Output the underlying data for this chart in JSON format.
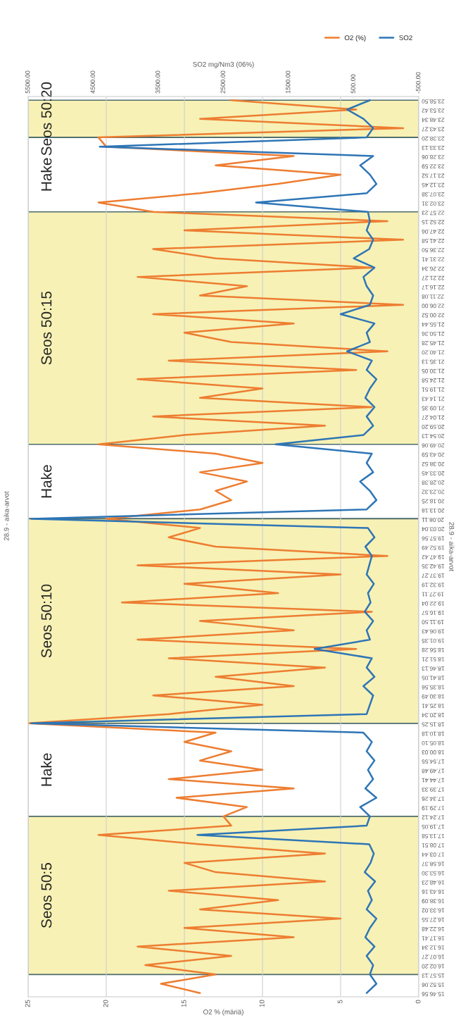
{
  "chart_data": {
    "type": "line",
    "orientation": "horizontal",
    "xlabel": "O2 % (märiä)",
    "x2label": "SO2 mg/Nm3 (06%)",
    "ylabel": "28.9 - aika-arvot",
    "annotations": [
      "28.9 - aika-arvot"
    ],
    "categories": [
      "23.58.50",
      "23.53.42",
      "23.48.34",
      "23.43.27",
      "23.38.20",
      "23.33.13",
      "23.28.06",
      "23.22.59",
      "23.17.52",
      "23.12.45",
      "23.07.38",
      "23.02.31",
      "22.57.23",
      "22.52.15",
      "22.47.06",
      "22.41.58",
      "22.36.50",
      "22.31.41",
      "22.26.34",
      "22.21.27",
      "22.16.17",
      "22.11.08",
      "22.06.00",
      "22.00.52",
      "21.55.44",
      "21.50.36",
      "21.45.28",
      "21.40.20",
      "21.35.13",
      "21.30.05",
      "21.24.58",
      "21.19.51",
      "21.14.43",
      "21.09.35",
      "21.04.27",
      "20.59.20",
      "20.54.13",
      "20.49.06",
      "20.43.59",
      "20.38.52",
      "20.33.45",
      "20.28.38",
      "20.23.32",
      "20.18.25",
      "20.13.18",
      "20.08.11",
      "20.03.04",
      "19.57.56",
      "19.52.49",
      "19.47.42",
      "19.42.35",
      "19.37.27",
      "19.32.19",
      "19.27.11",
      "19.22.04",
      "19.16.57",
      "19.11.50",
      "19.06.43",
      "19.01.35",
      "18.56.28",
      "18.51.21",
      "18.46.13",
      "18.41.05",
      "18.35.56",
      "18.30.49",
      "18.25.41",
      "18.20.34",
      "18.15.25",
      "18.10.18",
      "18.05.10",
      "18.00.03",
      "17.54.55",
      "17.49.48",
      "17.44.41",
      "17.39.33",
      "17.34.26",
      "17.29.19",
      "17.24.12",
      "17.19.05",
      "17.13.58",
      "17.08.51",
      "17.03.44",
      "16.58.37",
      "16.53.30",
      "16.48.23",
      "16.43.16",
      "16.38.09",
      "16.33.02",
      "16.27.55",
      "16.22.48",
      "16.17.41",
      "16.12.34",
      "16.07.27",
      "16.02.20",
      "15.57.13",
      "15.52.06",
      "15.46.56"
    ],
    "series": [
      {
        "name": "O2 (%)",
        "color": "#ed7d31",
        "values": [
          12,
          4,
          14,
          1,
          20.5,
          20,
          8,
          13,
          5,
          9,
          14,
          20.5,
          17,
          2,
          15,
          1,
          17,
          13,
          3,
          18,
          11,
          14,
          1,
          17,
          8,
          15,
          12,
          2,
          16,
          4,
          18,
          10,
          14,
          3,
          17,
          6,
          15,
          20.5,
          13,
          10,
          14,
          11,
          13,
          12,
          14,
          20,
          14,
          16,
          13,
          2,
          18,
          5,
          15,
          9,
          19,
          3,
          14,
          8,
          18,
          4,
          16,
          6,
          13,
          8,
          17,
          10,
          16,
          25,
          13,
          15,
          12,
          14,
          10,
          16,
          8,
          15.5,
          11,
          12.5,
          12,
          20.5,
          14,
          6,
          15,
          13,
          6,
          16,
          9,
          14,
          5,
          15,
          8,
          18,
          12,
          17.5,
          13,
          16.5,
          14
        ]
      },
      {
        "name": "SO2",
        "color": "#2e75b6",
        "axis": "x2",
        "values": [
          250,
          600,
          350,
          200,
          300,
          4400,
          200,
          400,
          250,
          150,
          300,
          2000,
          280,
          250,
          300,
          200,
          260,
          500,
          180,
          350,
          300,
          200,
          250,
          700,
          180,
          300,
          250,
          600,
          220,
          300,
          150,
          250,
          320,
          180,
          300,
          200,
          350,
          1700,
          220,
          300,
          200,
          400,
          250,
          150,
          300,
          5450,
          280,
          180,
          320,
          220,
          260,
          300,
          190,
          280,
          240,
          330,
          200,
          300,
          250,
          1100,
          220,
          300,
          180,
          350,
          200,
          250,
          300,
          5450,
          350,
          220,
          300,
          180,
          280,
          200,
          320,
          150,
          400,
          250,
          300,
          2900,
          260,
          190,
          240,
          330,
          170,
          280,
          220,
          300,
          150,
          250,
          320,
          180,
          300,
          200,
          250,
          150,
          300
        ]
      }
    ],
    "xlim": [
      25,
      0
    ],
    "xticks": [
      0,
      5,
      10,
      15,
      20,
      25
    ],
    "x2lim": [
      5500,
      -500
    ],
    "x2ticks": [
      {
        "value": -500,
        "label": "-500.00"
      },
      {
        "value": 500,
        "label": "500.00"
      },
      {
        "value": 1500,
        "label": "1500.00"
      },
      {
        "value": 2500,
        "label": "2500.00"
      },
      {
        "value": 3500,
        "label": "3500.00"
      },
      {
        "value": 4500,
        "label": "4500.00"
      },
      {
        "value": 5500,
        "label": "5500.00"
      }
    ],
    "bands": [
      {
        "axis": "y",
        "from": "23.58.50",
        "to": "23.38.20",
        "label": "Seos 50:20",
        "color": "#f7f1b5"
      },
      {
        "axis": "y",
        "from": "23.38.20",
        "to": "22.57.23",
        "label": "Hake",
        "color": "#ffffff"
      },
      {
        "axis": "y",
        "from": "22.57.23",
        "to": "20.49.06",
        "label": "Seos 50:15",
        "color": "#f7f1b5"
      },
      {
        "axis": "y",
        "from": "20.49.06",
        "to": "20.08.11",
        "label": "Hake",
        "color": "#ffffff"
      },
      {
        "axis": "y",
        "from": "20.08.11",
        "to": "18.15.25",
        "label": "Seos 50:10",
        "color": "#f7f1b5"
      },
      {
        "axis": "y",
        "from": "18.15.25",
        "to": "17.24.12",
        "label": "Hake",
        "color": "#ffffff"
      },
      {
        "axis": "y",
        "from": "17.24.12",
        "to": "15.57.13",
        "label": "Seos 50:5",
        "color": "#f7f1b5"
      }
    ],
    "grid": "x",
    "legend": "top right",
    "marker": "none",
    "line_style": "solid"
  }
}
